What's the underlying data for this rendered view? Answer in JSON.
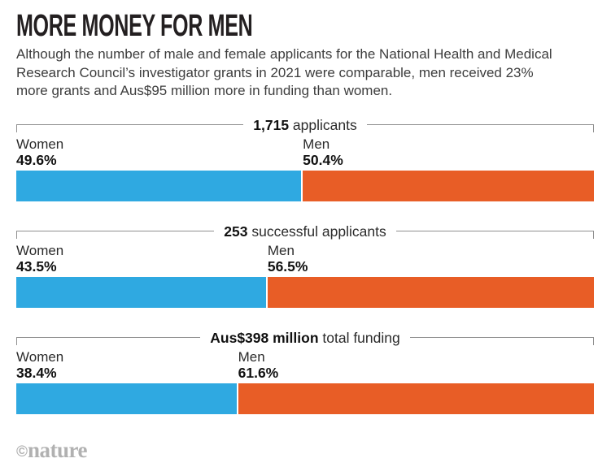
{
  "title": "MORE MONEY FOR MEN",
  "subtitle": "Although the number of male and female applicants for the National Health and Medical Research Council’s investigator grants in 2021 were comparable, men received 23% more grants and Aus$95 million more in funding than women.",
  "footer": {
    "credit_symbol": "©",
    "credit_name": "nature"
  },
  "colors": {
    "women": "#2FA9E1",
    "men": "#E85D26",
    "bracket": "#8f8f8f",
    "title_text": "#231f20",
    "credit_text": "#b1b1b1"
  },
  "chart_data": {
    "type": "bar",
    "variant": "horizontal-100pct-stacked",
    "title": "MORE MONEY FOR MEN",
    "legend_position": "labels-above-bar-segments",
    "grid": false,
    "categories": [
      "Women",
      "Men"
    ],
    "sections": [
      {
        "header_bold": "1,715",
        "header_rest": " applicants",
        "total_value": 1715,
        "total_unit": "applicants",
        "women_label": "Women",
        "men_label": "Men",
        "women_pct": 49.6,
        "men_pct": 50.4,
        "women_pct_text": "49.6%",
        "men_pct_text": "50.4%"
      },
      {
        "header_bold": "253",
        "header_rest": " successful applicants",
        "total_value": 253,
        "total_unit": "successful applicants",
        "women_label": "Women",
        "men_label": "Men",
        "women_pct": 43.5,
        "men_pct": 56.5,
        "women_pct_text": "43.5%",
        "men_pct_text": "56.5%"
      },
      {
        "header_bold": "Aus$398 million",
        "header_rest": " total funding",
        "total_value": 398,
        "total_unit": "Aus$ million total funding",
        "women_label": "Women",
        "men_label": "Men",
        "women_pct": 38.4,
        "men_pct": 61.6,
        "women_pct_text": "38.4%",
        "men_pct_text": "61.6%"
      }
    ]
  }
}
